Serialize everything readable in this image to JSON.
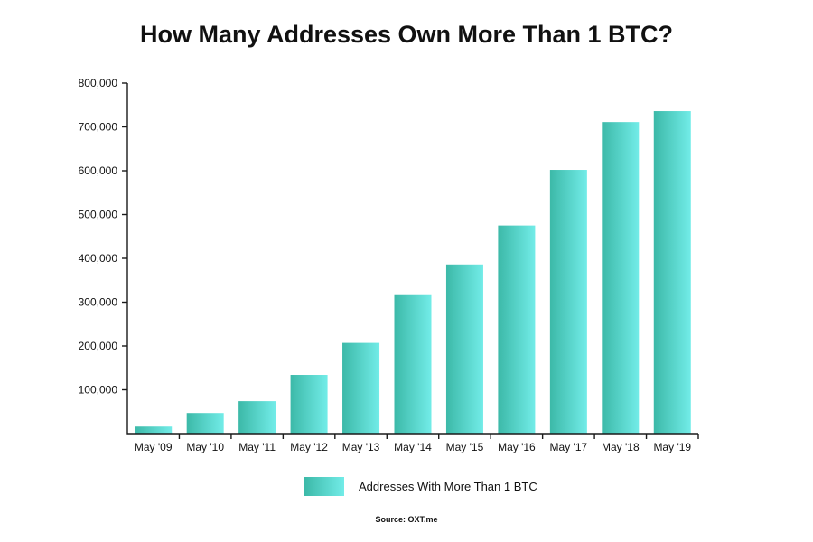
{
  "chart_data": {
    "type": "bar",
    "title": "How Many Addresses Own More Than 1 BTC?",
    "categories": [
      "May '09",
      "May '10",
      "May '11",
      "May '12",
      "May '13",
      "May '14",
      "May '15",
      "May '16",
      "May '17",
      "May '18",
      "May '19"
    ],
    "series": [
      {
        "name": "Addresses With More Than 1 BTC",
        "values": [
          16000,
          47000,
          74000,
          134000,
          207000,
          316000,
          386000,
          475000,
          602000,
          711000,
          736000
        ]
      }
    ],
    "xlabel": "",
    "ylabel": "",
    "ylim": [
      0,
      800000
    ],
    "yticks": [
      100000,
      200000,
      300000,
      400000,
      500000,
      600000,
      700000,
      800000
    ],
    "ytick_labels": [
      "100,000",
      "200,000",
      "300,000",
      "400,000",
      "500,000",
      "600,000",
      "700,000",
      "800,000"
    ],
    "grid": false,
    "legend_position": "bottom-center",
    "source": "Source: OXT.me",
    "colors": {
      "bar_left": "#3cb9a8",
      "bar_right": "#72ece8",
      "axis": "#1a1a1a"
    }
  }
}
